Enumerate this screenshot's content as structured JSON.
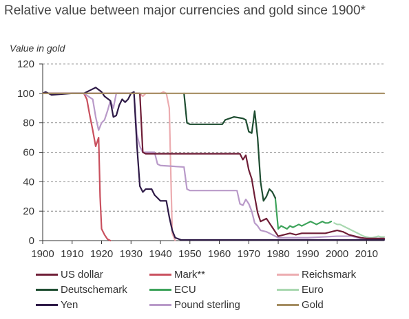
{
  "chart_data": {
    "type": "line",
    "title": "Relative value between major currencies and gold since 1900*",
    "ylabel": "Value in gold",
    "xlabel": "",
    "xlim": [
      1900,
      2016
    ],
    "ylim": [
      0,
      120
    ],
    "x_ticks": [
      1900,
      1910,
      1920,
      1930,
      1940,
      1950,
      1960,
      1970,
      1980,
      1990,
      2000,
      2010
    ],
    "y_ticks": [
      0,
      20,
      40,
      60,
      80,
      100,
      120
    ],
    "grid": "horizontal dashed",
    "legend_position": "bottom",
    "series": [
      {
        "name": "US dollar",
        "color": "#6e1d36",
        "points": [
          [
            1900,
            100
          ],
          [
            1933,
            100
          ],
          [
            1934,
            60
          ],
          [
            1935,
            59
          ],
          [
            1967,
            59
          ],
          [
            1968,
            55
          ],
          [
            1969,
            58
          ],
          [
            1970,
            48
          ],
          [
            1971,
            42
          ],
          [
            1972,
            30
          ],
          [
            1973,
            19
          ],
          [
            1974,
            13
          ],
          [
            1975,
            14
          ],
          [
            1976,
            15
          ],
          [
            1977,
            12
          ],
          [
            1978,
            9
          ],
          [
            1979,
            6
          ],
          [
            1980,
            3
          ],
          [
            1982,
            4
          ],
          [
            1984,
            5
          ],
          [
            1986,
            4
          ],
          [
            1988,
            5
          ],
          [
            1990,
            5
          ],
          [
            1992,
            5
          ],
          [
            1994,
            5
          ],
          [
            1996,
            5
          ],
          [
            1998,
            6
          ],
          [
            2000,
            7
          ],
          [
            2002,
            6
          ],
          [
            2004,
            4
          ],
          [
            2006,
            3
          ],
          [
            2008,
            2
          ],
          [
            2010,
            1.5
          ],
          [
            2012,
            1.5
          ],
          [
            2016,
            1.5
          ]
        ]
      },
      {
        "name": "Mark**",
        "color": "#c9505e",
        "points": [
          [
            1900,
            100
          ],
          [
            1914,
            100
          ],
          [
            1915,
            96
          ],
          [
            1916,
            85
          ],
          [
            1917,
            75
          ],
          [
            1918,
            64
          ],
          [
            1919,
            70
          ],
          [
            1919.5,
            30
          ],
          [
            1920,
            8
          ],
          [
            1921,
            4
          ],
          [
            1922,
            1
          ],
          [
            1923,
            0
          ]
        ]
      },
      {
        "name": "Reichsmark",
        "color": "#ecacb0",
        "points": [
          [
            1924,
            100
          ],
          [
            1933,
            100
          ],
          [
            1934,
            98
          ],
          [
            1935,
            100
          ],
          [
            1940,
            100
          ],
          [
            1941,
            101
          ],
          [
            1942,
            100
          ],
          [
            1943,
            90
          ],
          [
            1944,
            5
          ],
          [
            1945,
            0
          ]
        ]
      },
      {
        "name": "Deutschemark",
        "color": "#1e4d31",
        "points": [
          [
            1948,
            100
          ],
          [
            1949,
            80
          ],
          [
            1950,
            79
          ],
          [
            1961,
            79
          ],
          [
            1962,
            82
          ],
          [
            1965,
            84
          ],
          [
            1968,
            83
          ],
          [
            1969,
            82
          ],
          [
            1970,
            74
          ],
          [
            1971,
            73
          ],
          [
            1972,
            88
          ],
          [
            1973,
            70
          ],
          [
            1974,
            40
          ],
          [
            1975,
            27
          ],
          [
            1976,
            30
          ],
          [
            1977,
            35
          ],
          [
            1978,
            33
          ],
          [
            1979,
            29
          ]
        ]
      },
      {
        "name": "ECU",
        "color": "#3da35a",
        "points": [
          [
            1979,
            29
          ],
          [
            1980,
            8
          ],
          [
            1981,
            10
          ],
          [
            1982,
            9
          ],
          [
            1983,
            8
          ],
          [
            1984,
            10
          ],
          [
            1985,
            9
          ],
          [
            1986,
            10
          ],
          [
            1987,
            11
          ],
          [
            1988,
            10
          ],
          [
            1989,
            11
          ],
          [
            1990,
            12
          ],
          [
            1991,
            13
          ],
          [
            1992,
            12
          ],
          [
            1993,
            11
          ],
          [
            1994,
            12
          ],
          [
            1995,
            13
          ],
          [
            1996,
            12
          ],
          [
            1997,
            12
          ],
          [
            1998,
            13
          ]
        ]
      },
      {
        "name": "Euro",
        "color": "#a9d8b0",
        "points": [
          [
            1999,
            12
          ],
          [
            2000,
            11
          ],
          [
            2001,
            11
          ],
          [
            2002,
            10
          ],
          [
            2003,
            9
          ],
          [
            2004,
            8
          ],
          [
            2005,
            7
          ],
          [
            2006,
            6
          ],
          [
            2007,
            5
          ],
          [
            2008,
            4
          ],
          [
            2009,
            3
          ],
          [
            2010,
            2.5
          ],
          [
            2011,
            2
          ],
          [
            2012,
            2
          ],
          [
            2013,
            2.5
          ],
          [
            2014,
            3
          ],
          [
            2015,
            2.5
          ],
          [
            2016,
            2.5
          ]
        ]
      },
      {
        "name": "Yen",
        "color": "#2e1a47",
        "points": [
          [
            1900,
            100
          ],
          [
            1901,
            101
          ],
          [
            1903,
            99
          ],
          [
            1910,
            100
          ],
          [
            1914,
            100
          ],
          [
            1916,
            102
          ],
          [
            1918,
            104
          ],
          [
            1920,
            101
          ],
          [
            1921,
            98
          ],
          [
            1923,
            95
          ],
          [
            1924,
            84
          ],
          [
            1925,
            85
          ],
          [
            1926,
            92
          ],
          [
            1927,
            96
          ],
          [
            1928,
            94
          ],
          [
            1929,
            96
          ],
          [
            1930,
            100
          ],
          [
            1931,
            101
          ],
          [
            1932,
            65
          ],
          [
            1933,
            37
          ],
          [
            1934,
            33
          ],
          [
            1935,
            35
          ],
          [
            1937,
            35
          ],
          [
            1938,
            31
          ],
          [
            1939,
            29
          ],
          [
            1940,
            27
          ],
          [
            1942,
            27
          ],
          [
            1943,
            16
          ],
          [
            1944,
            7
          ],
          [
            1945,
            2
          ],
          [
            1947,
            0.5
          ],
          [
            2016,
            0.5
          ]
        ]
      },
      {
        "name": "Pound sterling",
        "color": "#b99ac9",
        "points": [
          [
            1900,
            100
          ],
          [
            1914,
            100
          ],
          [
            1917,
            96
          ],
          [
            1918,
            84
          ],
          [
            1919,
            75
          ],
          [
            1920,
            80
          ],
          [
            1921,
            82
          ],
          [
            1922,
            88
          ],
          [
            1923,
            95
          ],
          [
            1924,
            90
          ],
          [
            1925,
            100
          ],
          [
            1931,
            100
          ],
          [
            1932,
            72
          ],
          [
            1933,
            64
          ],
          [
            1934,
            60
          ],
          [
            1938,
            60
          ],
          [
            1939,
            52
          ],
          [
            1940,
            51
          ],
          [
            1948,
            50
          ],
          [
            1949,
            35
          ],
          [
            1950,
            34
          ],
          [
            1966,
            34
          ],
          [
            1967,
            25
          ],
          [
            1968,
            24
          ],
          [
            1969,
            28
          ],
          [
            1970,
            25
          ],
          [
            1971,
            20
          ],
          [
            1972,
            12
          ],
          [
            1973,
            10
          ],
          [
            1974,
            7
          ],
          [
            1976,
            6
          ],
          [
            1977,
            5
          ],
          [
            1978,
            4
          ],
          [
            1980,
            2
          ],
          [
            1990,
            2
          ],
          [
            2000,
            3
          ],
          [
            2005,
            3
          ],
          [
            2008,
            1.5
          ],
          [
            2016,
            1.5
          ]
        ]
      },
      {
        "name": "Gold",
        "color": "#a48d61",
        "points": [
          [
            1900,
            100
          ],
          [
            2016,
            100
          ]
        ]
      }
    ]
  },
  "legend_layout": [
    [
      "US dollar",
      "Mark**",
      "Reichsmark"
    ],
    [
      "Deutschemark",
      "ECU",
      "Euro"
    ],
    [
      "Yen",
      "Pound sterling",
      "Gold"
    ]
  ]
}
